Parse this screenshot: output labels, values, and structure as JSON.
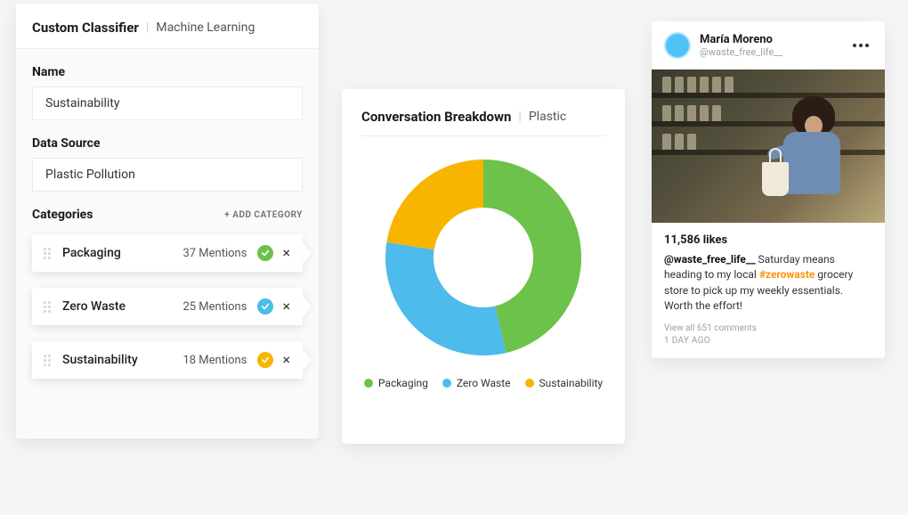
{
  "classifier": {
    "title": "Custom Classifier",
    "subtitle": "Machine Learning",
    "name_label": "Name",
    "name_value": "Sustainability",
    "datasource_label": "Data Source",
    "datasource_value": "Plastic Pollution",
    "categories_label": "Categories",
    "add_category_label": "+ ADD CATEGORY",
    "categories": [
      {
        "name": "Packaging",
        "mentions_text": "37 Mentions",
        "mentions": 37,
        "status_color": "#6cc24a"
      },
      {
        "name": "Zero Waste",
        "mentions_text": "25 Mentions",
        "mentions": 25,
        "status_color": "#4dbbeb"
      },
      {
        "name": "Sustainability",
        "mentions_text": "18 Mentions",
        "mentions": 18,
        "status_color": "#f7b500"
      }
    ]
  },
  "breakdown": {
    "title": "Conversation Breakdown",
    "filter": "Plastic",
    "type": "donut",
    "slices": [
      {
        "label": "Packaging",
        "value": 37,
        "color": "#6cc24a"
      },
      {
        "label": "Zero Waste",
        "value": 25,
        "color": "#4dbbeb"
      },
      {
        "label": "Sustainability",
        "value": 18,
        "color": "#f7b500"
      }
    ],
    "outer_radius": 110,
    "inner_radius": 56,
    "background_color": "#ffffff",
    "title_fontsize": 15,
    "legend_fontsize": 12
  },
  "post": {
    "author_name": "María Moreno",
    "author_handle": "@waste_free_life__",
    "likes_text": "11,586 likes",
    "caption_handle": "@waste_free_life__",
    "caption_before_tag": "  Saturday means heading to my local ",
    "caption_hashtag": "#zerowaste",
    "caption_after_tag": " grocery store to pick up my weekly essentials. Worth the effort!",
    "view_comments": "View all 651 comments",
    "timestamp": "1 DAY AGO"
  },
  "colors": {
    "card_bg": "#ffffff",
    "page_bg": "#f5f5f5",
    "text_primary": "#1a1a1a",
    "text_secondary": "#555555",
    "hashtag": "#ff8c00"
  }
}
